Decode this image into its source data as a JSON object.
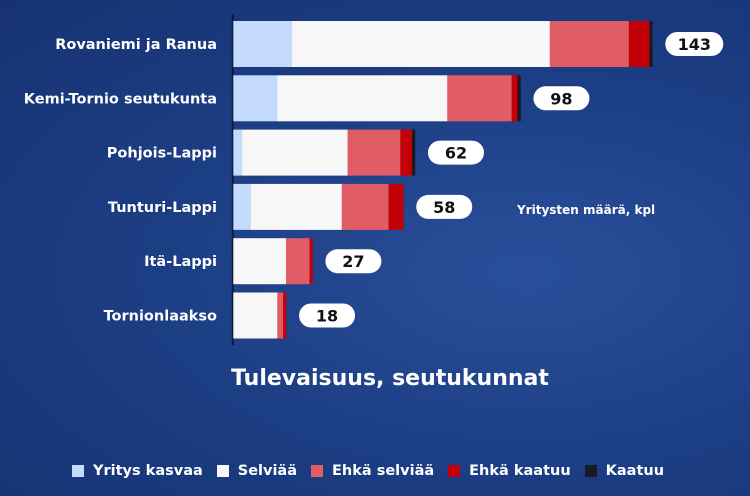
{
  "chart_data": {
    "type": "bar",
    "orientation": "horizontal",
    "stacked": true,
    "title": "Tulevaisuus, seutukunnat",
    "unit_label": "Yritysten määrä, kpl",
    "categories": [
      "Rovaniemi ja Ranua",
      "Kemi-Tornio seutukunta",
      "Pohjois-Lappi",
      "Tunturi-Lappi",
      "Itä-Lappi",
      "Tornionlaakso"
    ],
    "totals": [
      143,
      98,
      62,
      58,
      27,
      18
    ],
    "series": [
      {
        "name": "Yritys kasvaa",
        "color": "#c4dafc",
        "values": [
          20,
          15,
          3,
          6,
          0,
          0
        ]
      },
      {
        "name": "Selviää",
        "color": "#f7f7f7",
        "values": [
          88,
          58,
          36,
          31,
          18,
          15
        ]
      },
      {
        "name": "Ehkä selviää",
        "color": "#e05d66",
        "values": [
          27,
          22,
          18,
          16,
          8,
          2
        ]
      },
      {
        "name": "Ehkä kaatuu",
        "color": "#c20008",
        "values": [
          7,
          2,
          4,
          5,
          1,
          1
        ]
      },
      {
        "name": "Kaatuu",
        "color": "#1a1a22",
        "values": [
          1,
          1,
          1,
          0,
          0,
          0
        ]
      }
    ],
    "legend_position": "bottom",
    "grid": false
  }
}
